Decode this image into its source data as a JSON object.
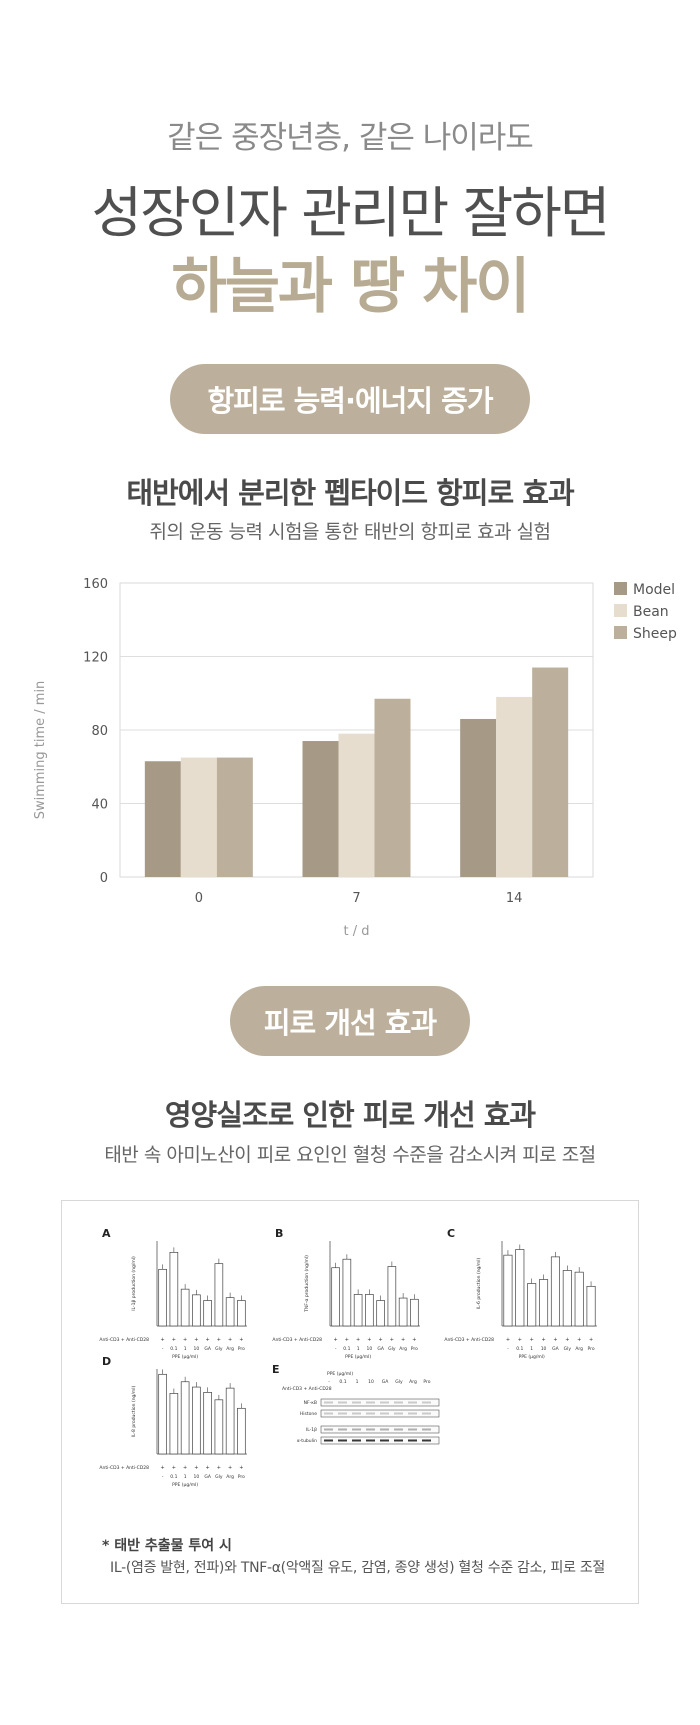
{
  "hero": {
    "subtitle": "같은 중장년층, 같은 나이라도",
    "headline": "성장인자 관리만 잘하면",
    "accent": "하늘과 땅 차이"
  },
  "section1": {
    "pill": "항피로 능력·에너지 증가",
    "title": "태반에서 분리한 펩타이드 항피로 효과",
    "subtitle": "쥐의 운동 능력 시험을 통한 태반의 항피로 효과 실험"
  },
  "chart_data": {
    "type": "bar",
    "categories": [
      "0",
      "7",
      "14"
    ],
    "series": [
      {
        "name": "Model",
        "values": [
          63,
          74,
          86
        ],
        "color": "#a69a86"
      },
      {
        "name": "Bean",
        "values": [
          65,
          78,
          98
        ],
        "color": "#e6ddce"
      },
      {
        "name": "Sheep",
        "values": [
          65,
          97,
          114
        ],
        "color": "#bcb09c"
      }
    ],
    "xlabel": "t / d",
    "ylabel": "Swimming time / min",
    "ylim": [
      0,
      160
    ],
    "yticks": [
      "0",
      "40",
      "80",
      "120",
      "160"
    ],
    "grid": true,
    "legend": "right"
  },
  "section2": {
    "pill": "피로 개선 효과",
    "title": "영양실조로 인한 피로 개선 효과",
    "subtitle": "태반 속 아미노산이 피로 요인인 혈청 수준을 감소시켜 피로 조절"
  },
  "figure": {
    "panels": [
      "A",
      "B",
      "C",
      "D",
      "E"
    ],
    "ylabels": [
      "IL-1β production (ng/ml)",
      "TNF-α production (ng/ml)",
      "IL-6 production (ng/ml)",
      "IL-8 production (ng/ml)"
    ],
    "xaxis_row": "Anti-CD3 + Anti-CD28",
    "xaxis_groups": [
      "-",
      "0.1",
      "1",
      "10",
      "GA",
      "Gly",
      "Arg",
      "Pro"
    ],
    "ppe_label": "PPE (μg/ml)",
    "blot_rows": [
      "NF-κB",
      "Histone",
      "IL-1β",
      "α-tubulin"
    ],
    "panel_values": [
      [
        2.0,
        2.6,
        1.3,
        1.1,
        0.9,
        2.2,
        1.0,
        0.9
      ],
      [
        4.8,
        5.5,
        2.6,
        2.6,
        2.1,
        4.9,
        2.3,
        2.2
      ],
      [
        1.25,
        1.35,
        0.75,
        0.82,
        1.22,
        0.98,
        0.95,
        0.7
      ],
      [
        0.75,
        0.57,
        0.68,
        0.63,
        0.58,
        0.51,
        0.62,
        0.43
      ]
    ]
  },
  "note": {
    "title": "* 태반 추출물 투여 시",
    "body": "IL-(염증 발현, 전파)와 TNF-α(악액질 유도, 감염, 종양 생성) 혈청 수준 감소, 피로 조절"
  }
}
